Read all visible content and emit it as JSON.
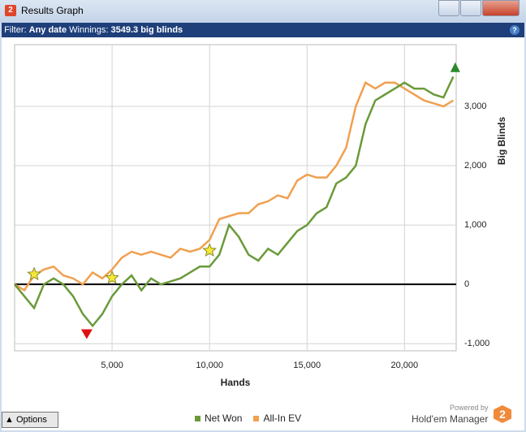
{
  "window": {
    "title": "Results Graph",
    "icon": "2"
  },
  "filter": {
    "label": "Filter:",
    "date": "Any date",
    "winnings_label": "Winnings:",
    "winnings": "3549.3 big blinds",
    "help": "?"
  },
  "footer": {
    "options": "Options",
    "powered": "Powered by",
    "brand": "Hold'em Manager",
    "logo": "2"
  },
  "chart_data": {
    "type": "line",
    "x_label": "Hands",
    "y_label": "Big Blinds",
    "x": [
      0,
      500,
      1000,
      1500,
      2000,
      2500,
      3000,
      3500,
      4000,
      4500,
      5000,
      5500,
      6000,
      6500,
      7000,
      7500,
      8000,
      8500,
      9000,
      9500,
      10000,
      10500,
      11000,
      11500,
      12000,
      12500,
      13000,
      13500,
      14000,
      14500,
      15000,
      15500,
      16000,
      16500,
      17000,
      17500,
      18000,
      18500,
      19000,
      19500,
      20000,
      20500,
      21000,
      21500,
      22000,
      22500
    ],
    "series": [
      {
        "name": "Net Won",
        "color": "#6a9a3a",
        "values": [
          0,
          -200,
          -400,
          0,
          100,
          0,
          -200,
          -500,
          -700,
          -500,
          -200,
          0,
          150,
          -100,
          100,
          0,
          50,
          100,
          200,
          300,
          300,
          500,
          1000,
          800,
          500,
          400,
          600,
          500,
          700,
          900,
          1000,
          1200,
          1300,
          1700,
          1800,
          2000,
          2700,
          3100,
          3200,
          3300,
          3400,
          3300,
          3300,
          3200,
          3150,
          3500
        ]
      },
      {
        "name": "All-In EV",
        "color": "#f0a050",
        "values": [
          0,
          -100,
          150,
          250,
          300,
          150,
          100,
          0,
          200,
          100,
          250,
          450,
          550,
          500,
          550,
          500,
          450,
          600,
          550,
          600,
          750,
          1100,
          1150,
          1200,
          1200,
          1350,
          1400,
          1500,
          1450,
          1750,
          1850,
          1800,
          1800,
          2000,
          2300,
          3000,
          3400,
          3300,
          3400,
          3400,
          3300,
          3200,
          3100,
          3050,
          3000,
          3100
        ]
      }
    ],
    "stars": {
      "x": [
        1000,
        5000,
        10000
      ],
      "values": [
        170,
        110,
        570
      ],
      "color": "#f5e83a"
    },
    "min_marker": {
      "x": 3700,
      "value": -840,
      "color": "#e01010"
    },
    "max_marker": {
      "x": 22600,
      "value": 3660,
      "color": "#2a8a2a"
    },
    "xlim": [
      0,
      22650
    ],
    "ylim": [
      -1120,
      4040
    ],
    "xticks": [
      {
        "value": 5000,
        "label": "5,000"
      },
      {
        "value": 10000,
        "label": "10,000"
      },
      {
        "value": 15000,
        "label": "15,000"
      },
      {
        "value": 20000,
        "label": "20,000"
      }
    ],
    "yticks": [
      {
        "value": -1000,
        "label": "-1,000"
      },
      0,
      {
        "value": 1000,
        "label": "1,000"
      },
      {
        "value": 2000,
        "label": "2,000"
      },
      {
        "value": 3000,
        "label": "3,000"
      }
    ],
    "grid": true,
    "zero_line": true
  }
}
